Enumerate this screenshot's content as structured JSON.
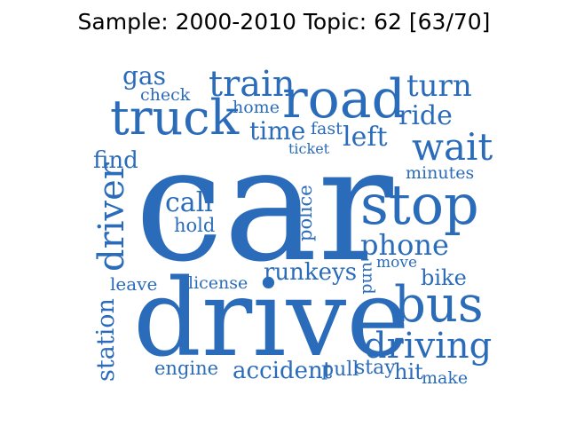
{
  "title": "Sample: 2000-2010 Topic: 62 [63/70]",
  "colors": {
    "words": "#2b6cba",
    "title": "#000000",
    "background": "#ffffff"
  },
  "words": {
    "car": "car",
    "drive": "drive",
    "stop": "stop",
    "road": "road",
    "truck": "truck",
    "bus": "bus",
    "wait": "wait",
    "driving": "driving",
    "train": "train",
    "turn": "turn",
    "driver": "driver",
    "phone": "phone",
    "ride": "ride",
    "left": "left",
    "call": "call",
    "time": "time",
    "runkeys": "runkeys",
    "station": "station",
    "gas": "gas",
    "find": "find",
    "accident": "accident",
    "engine": "engine",
    "bike": "bike",
    "hold": "hold",
    "license": "license",
    "leave": "leave",
    "minutes": "minutes",
    "police": "police",
    "check": "check",
    "home": "home",
    "fast": "fast",
    "ticket": "ticket",
    "move": "move",
    "pull": "pull",
    "stay": "stay",
    "hit": "hit",
    "make": "make",
    "und": "und"
  }
}
